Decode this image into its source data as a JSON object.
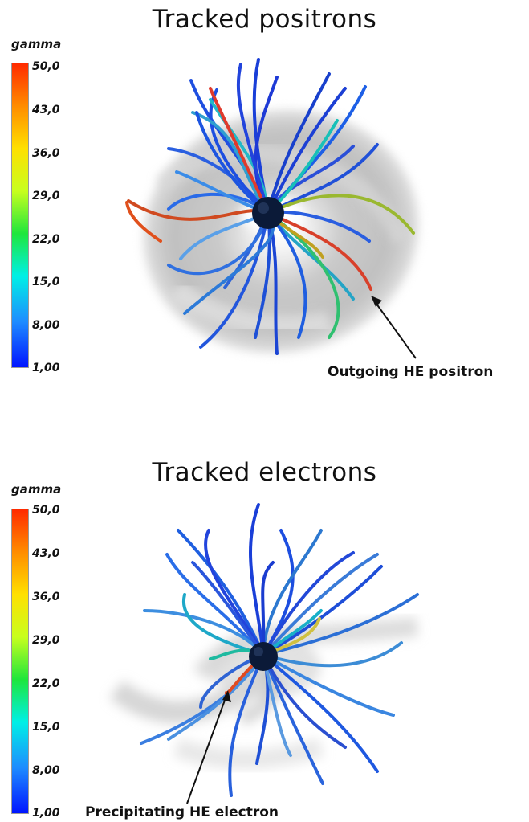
{
  "top_panel": {
    "title": "Tracked positrons",
    "colorbar": {
      "label": "gamma",
      "ticks": [
        "50,0",
        "43,0",
        "36,0",
        "29,0",
        "22,0",
        "15,0",
        "8,00",
        "1,00"
      ]
    },
    "annotation": "Outgoing HE positron"
  },
  "bottom_panel": {
    "title": "Tracked electrons",
    "colorbar": {
      "label": "gamma",
      "ticks": [
        "50,0",
        "43,0",
        "36,0",
        "29,0",
        "22,0",
        "15,0",
        "8,00",
        "1,00"
      ]
    },
    "annotation": "Precipitating HE electron"
  }
}
